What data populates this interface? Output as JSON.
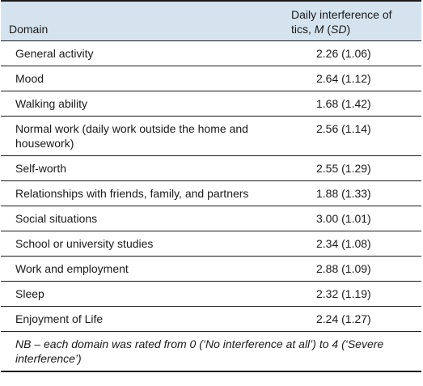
{
  "table": {
    "headers": {
      "domain": "Domain",
      "value_line1": "Daily interference of",
      "value_prefix": "tics, ",
      "value_m": "M",
      "value_mid": " (",
      "value_sd": "SD",
      "value_end": ")"
    },
    "rows": [
      {
        "domain": "General activity",
        "value": "2.26 (1.06)"
      },
      {
        "domain": "Mood",
        "value": "2.64 (1.12)"
      },
      {
        "domain": "Walking ability",
        "value": "1.68 (1.42)"
      },
      {
        "domain": "Normal work (daily work outside the home and housework)",
        "value": "2.56 (1.14)"
      },
      {
        "domain": "Self-worth",
        "value": "2.55 (1.29)"
      },
      {
        "domain": "Relationships with friends, family, and partners",
        "value": "1.88 (1.33)"
      },
      {
        "domain": "Social situations",
        "value": "3.00 (1.01)"
      },
      {
        "domain": "School or university studies",
        "value": "2.34 (1.08)"
      },
      {
        "domain": "Work and employment",
        "value": "2.88 (1.09)"
      },
      {
        "domain": "Sleep",
        "value": "2.32 (1.19)"
      },
      {
        "domain": "Enjoyment of Life",
        "value": "2.24 (1.27)"
      }
    ],
    "note": "NB – each domain was rated from 0 (‘No interference at all’) to 4 (‘Severe interference’)"
  }
}
